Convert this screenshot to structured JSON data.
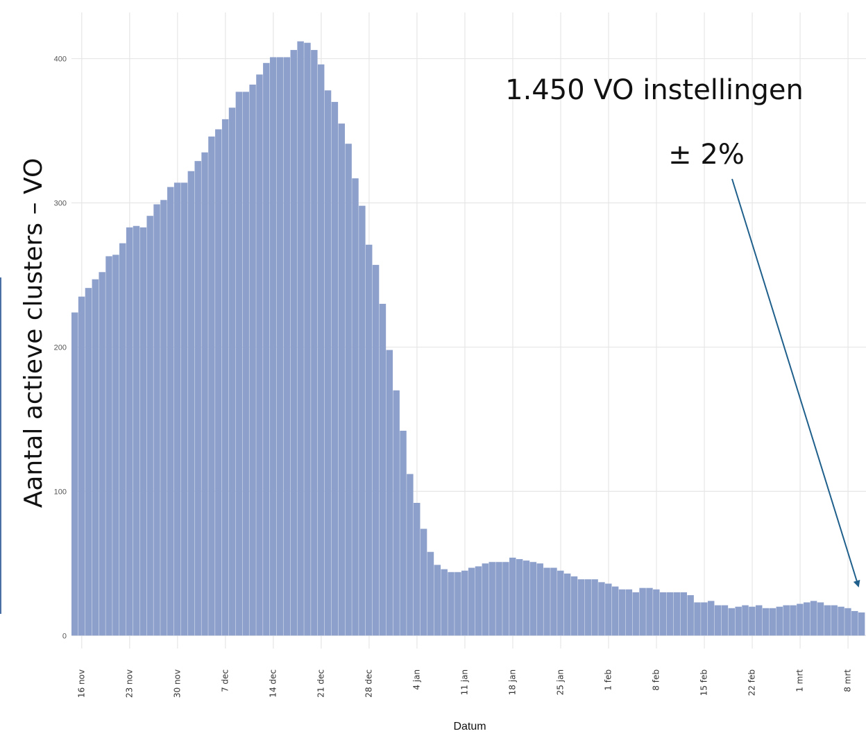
{
  "chart_data": {
    "type": "bar",
    "y_label": "Aantal actieve clusters – VO",
    "x_label": "Datum",
    "annotations": [
      "1.450 VO instellingen",
      "± 2%"
    ],
    "color": "#8da0cb",
    "grid": true,
    "ylim": [
      -9,
      432
    ],
    "yticks": [
      0,
      100,
      200,
      300,
      400
    ],
    "categories": [
      null,
      "16 nov",
      null,
      null,
      null,
      null,
      null,
      null,
      "23 nov",
      null,
      null,
      null,
      null,
      null,
      null,
      "30 nov",
      null,
      null,
      null,
      null,
      null,
      null,
      "7 dec",
      null,
      null,
      null,
      null,
      null,
      null,
      "14 dec",
      null,
      null,
      null,
      null,
      null,
      null,
      "21 dec",
      null,
      null,
      null,
      null,
      null,
      null,
      "28 dec",
      null,
      null,
      null,
      null,
      null,
      null,
      "4 jan",
      null,
      null,
      null,
      null,
      null,
      null,
      "11 jan",
      null,
      null,
      null,
      null,
      null,
      null,
      "18 jan",
      null,
      null,
      null,
      null,
      null,
      null,
      "25 jan",
      null,
      null,
      null,
      null,
      null,
      null,
      "1 feb",
      null,
      null,
      null,
      null,
      null,
      null,
      "8 feb",
      null,
      null,
      null,
      null,
      null,
      null,
      "15 feb",
      null,
      null,
      null,
      null,
      null,
      null,
      "22 feb",
      null,
      null,
      null,
      null,
      null,
      null,
      "1 mrt",
      null,
      null,
      null,
      null,
      null,
      null,
      "8 mrt",
      null,
      null
    ],
    "values": [
      224,
      235,
      241,
      247,
      252,
      263,
      264,
      272,
      283,
      284,
      283,
      291,
      299,
      302,
      311,
      314,
      314,
      322,
      329,
      335,
      346,
      351,
      358,
      366,
      377,
      377,
      382,
      389,
      397,
      401,
      401,
      401,
      406,
      412,
      411,
      406,
      396,
      378,
      370,
      355,
      341,
      317,
      298,
      271,
      257,
      230,
      198,
      170,
      142,
      112,
      92,
      74,
      58,
      49,
      46,
      44,
      44,
      45,
      47,
      48,
      50,
      51,
      51,
      51,
      54,
      53,
      52,
      51,
      50,
      47,
      47,
      45,
      43,
      41,
      39,
      39,
      39,
      37,
      36,
      34,
      32,
      32,
      30,
      33,
      33,
      32,
      30,
      30,
      30,
      30,
      28,
      23,
      23,
      24,
      21,
      21,
      19,
      20,
      21,
      20,
      21,
      19,
      19,
      20,
      21,
      21,
      22,
      23,
      24,
      23,
      21,
      21,
      20,
      19,
      17,
      16
    ]
  }
}
